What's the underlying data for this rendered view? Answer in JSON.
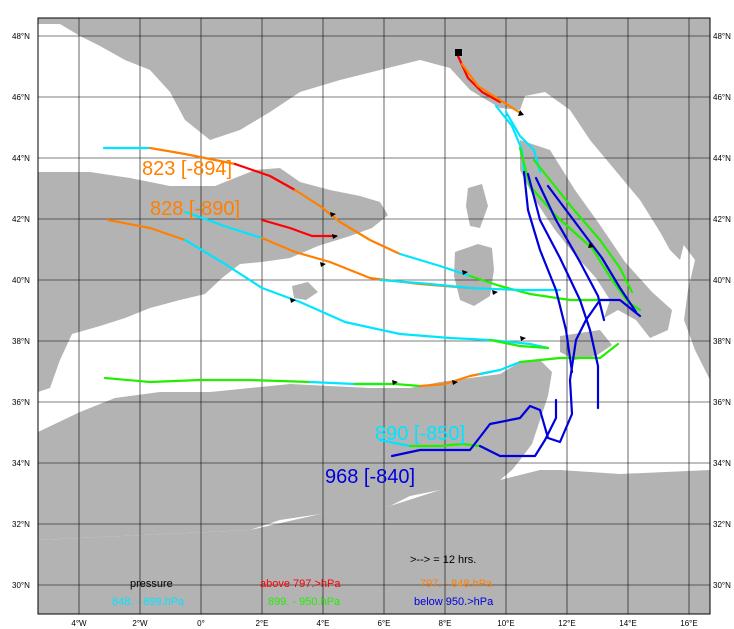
{
  "map": {
    "lat_labels": [
      "48°N",
      "46°N",
      "44°N",
      "42°N",
      "40°N",
      "38°N",
      "36°N",
      "34°N",
      "32°N",
      "30°N"
    ],
    "lon_labels": [
      "4°W",
      "2°W",
      "0°",
      "2°E",
      "4°E",
      "6°E",
      "8°E",
      "10°E",
      "12°E",
      "14°E",
      "16°E"
    ],
    "land_color": "#b3b3b3",
    "sea_color": "#ffffff",
    "grid_color": "#000000"
  },
  "labels": {
    "traj1": "823 [-894]",
    "traj2": "828 [-890]",
    "traj3": "890 [-850]",
    "traj4": "968 [-840]"
  },
  "legend": {
    "interval": ">--> = 12 hrs.",
    "title": "pressure",
    "above": "above   797.>hPa",
    "orange": "797. -    848.hPa",
    "cyan": "848. -    899.hPa",
    "green": "899. -    950.hPa",
    "below": "below   950.>hPa"
  },
  "colors": {
    "red": "#ff0000",
    "orange": "#ff8000",
    "cyan": "#00e5ff",
    "green": "#22ee00",
    "blue": "#0000dd"
  }
}
